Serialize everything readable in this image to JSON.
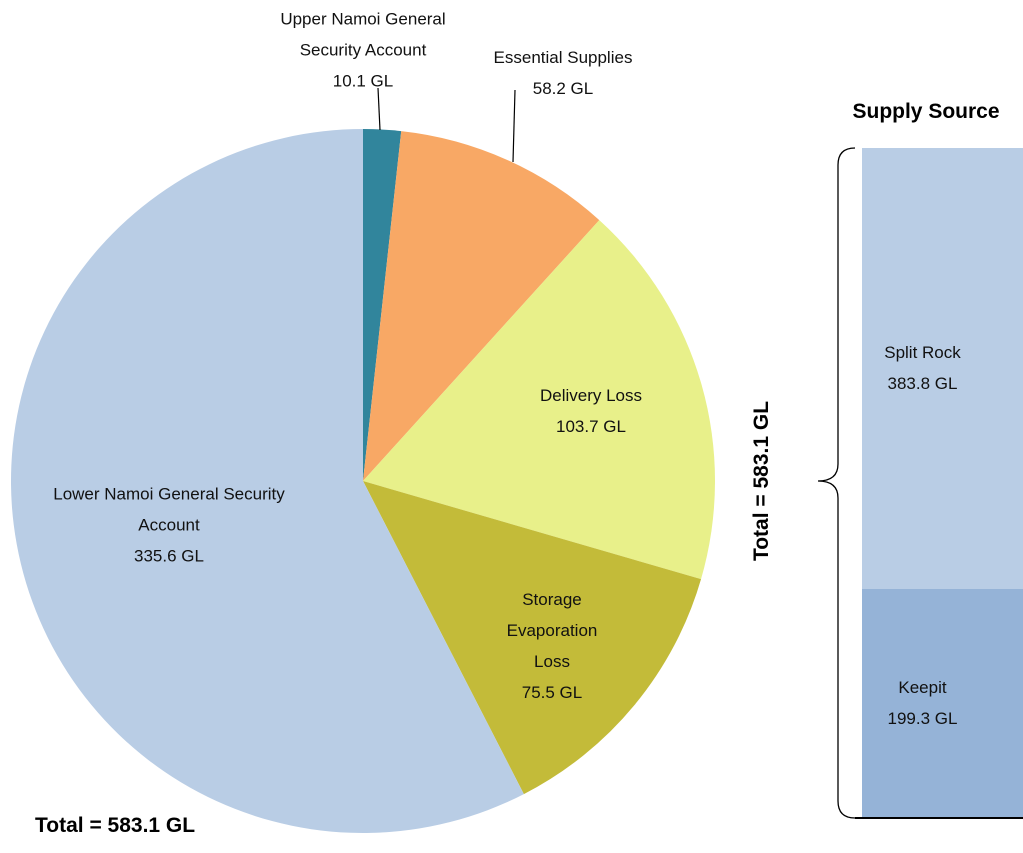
{
  "chart_data": [
    {
      "type": "pie",
      "categories": [
        "Upper Namoi General Security Account",
        "Essential Supplies",
        "Delivery Loss",
        "Storage Evaporation Loss",
        "Lower Namoi General Security Account"
      ],
      "values": [
        10.1,
        58.2,
        103.7,
        75.5,
        335.6
      ],
      "value_labels": [
        "10.1 GL",
        "58.2 GL",
        "103.7 GL",
        "75.5 GL",
        "335.6 GL"
      ],
      "colors": [
        "#31859c",
        "#f8a865",
        "#e8f08a",
        "#c3bb39",
        "#b9cde5"
      ],
      "total_label": "Total = 583.1 GL"
    },
    {
      "type": "stacked_bar",
      "title": "Supply Source",
      "series": [
        {
          "name": "Split Rock",
          "color": "#b9cde5",
          "values": [
            383.8
          ],
          "value_labels": [
            "383.8 GL"
          ]
        },
        {
          "name": "Keepit",
          "color": "#95b3d7",
          "values": [
            199.3
          ],
          "value_labels": [
            "199.3 GL"
          ]
        }
      ],
      "total_label": "Total = 583.1 GL"
    }
  ]
}
